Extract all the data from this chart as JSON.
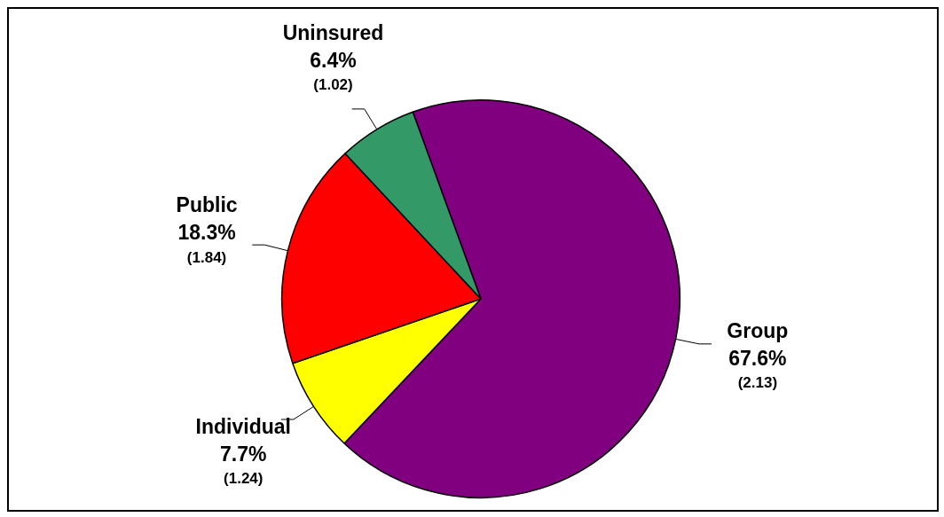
{
  "chart_data": {
    "type": "pie",
    "categories": [
      "Group",
      "Individual",
      "Public",
      "Uninsured"
    ],
    "values": [
      67.6,
      7.7,
      18.3,
      6.4
    ],
    "colors": [
      "#800080",
      "#ffff00",
      "#ff0000",
      "#339966"
    ],
    "value_labels": [
      "67.6%\n(2.13)",
      "7.7%\n(1.24)",
      "18.3%\n(1.84)",
      "6.4%\n(1.02)"
    ],
    "legend": false
  }
}
